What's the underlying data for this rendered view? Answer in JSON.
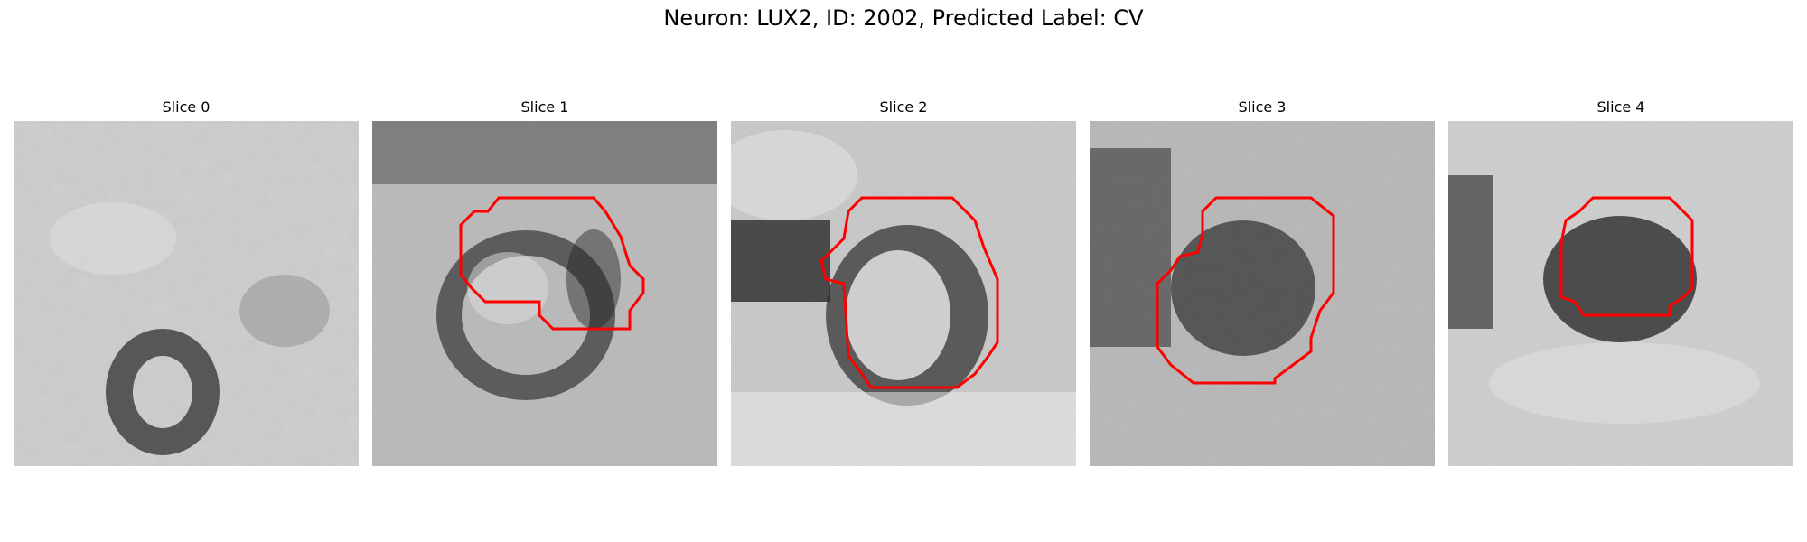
{
  "figure": {
    "title": "Neuron: LUX2, ID: 2002, Predicted Label: CV"
  },
  "panels": [
    {
      "title": "Slice 0",
      "contour": false
    },
    {
      "title": "Slice 1",
      "contour": true
    },
    {
      "title": "Slice 2",
      "contour": true
    },
    {
      "title": "Slice 3",
      "contour": true
    },
    {
      "title": "Slice 4",
      "contour": true
    }
  ],
  "colors": {
    "contour": "#ff0000",
    "background": "#ffffff"
  }
}
